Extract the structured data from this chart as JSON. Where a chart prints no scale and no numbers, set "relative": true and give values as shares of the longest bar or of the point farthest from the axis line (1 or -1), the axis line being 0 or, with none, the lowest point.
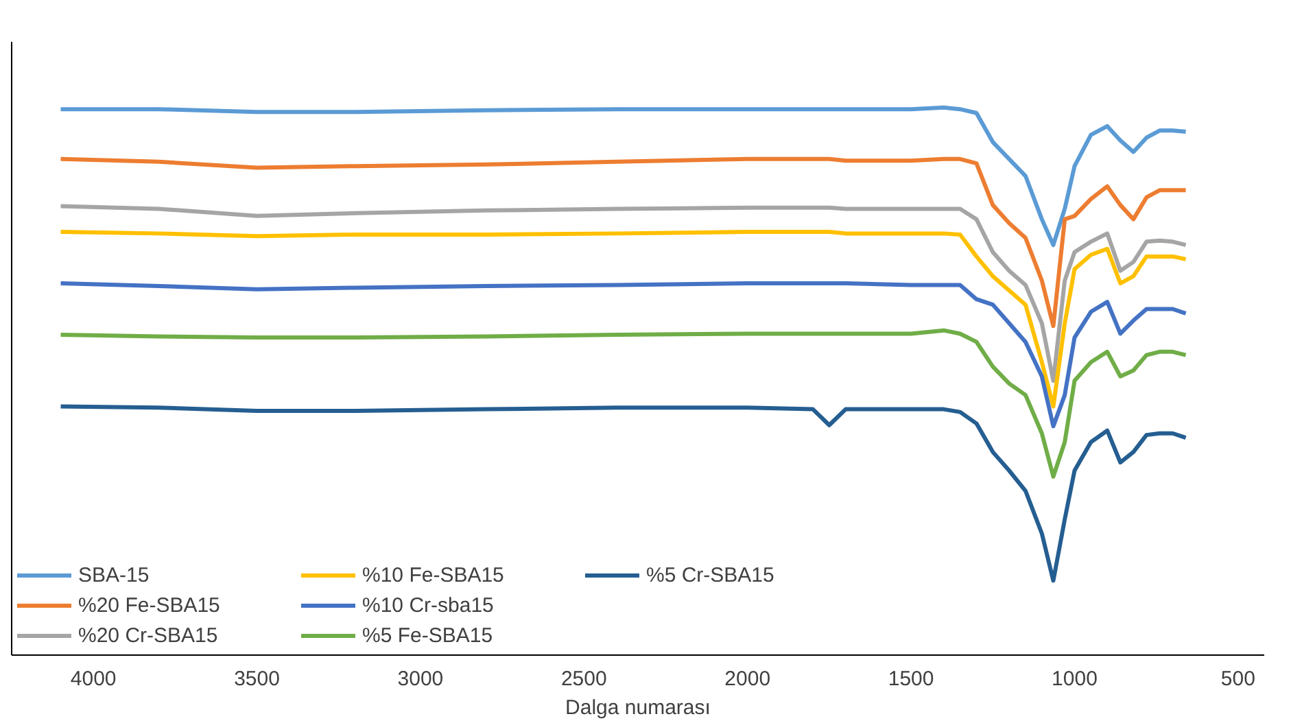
{
  "chart_data": {
    "type": "line",
    "relative": true,
    "xlabel": "Dalga numarası",
    "x": [
      4100,
      3800,
      3500,
      3200,
      2800,
      2400,
      2000,
      1800,
      1750,
      1700,
      1500,
      1400,
      1350,
      1300,
      1250,
      1200,
      1150,
      1100,
      1065,
      1030,
      1000,
      950,
      900,
      860,
      820,
      780,
      740,
      700,
      660
    ],
    "xlim": [
      4250,
      420
    ],
    "xticks": [
      4000,
      3500,
      3000,
      2500,
      2000,
      1500,
      1000,
      500
    ],
    "grid": false,
    "legend": "bottom left",
    "series": [
      {
        "name": "SBA-15",
        "color": "#5b9bd5",
        "values": [
          0.997,
          0.997,
          0.992,
          0.992,
          0.995,
          0.997,
          0.997,
          0.997,
          0.997,
          0.997,
          0.997,
          1,
          0.997,
          0.99,
          0.937,
          0.906,
          0.875,
          0.796,
          0.749,
          0.815,
          0.893,
          0.95,
          0.966,
          0.94,
          0.919,
          0.945,
          0.958,
          0.958,
          0.956
        ]
      },
      {
        "name": "%20 Fe-SBA15",
        "color": "#ed7d31",
        "values": [
          0.906,
          0.901,
          0.89,
          0.893,
          0.896,
          0.901,
          0.906,
          0.906,
          0.906,
          0.903,
          0.903,
          0.906,
          0.906,
          0.898,
          0.822,
          0.789,
          0.762,
          0.684,
          0.601,
          0.796,
          0.802,
          0.833,
          0.856,
          0.822,
          0.796,
          0.836,
          0.849,
          0.849,
          0.849
        ]
      },
      {
        "name": "%20 Cr-SBA15",
        "color": "#a5a5a5",
        "values": [
          0.82,
          0.815,
          0.802,
          0.807,
          0.812,
          0.815,
          0.817,
          0.817,
          0.817,
          0.815,
          0.815,
          0.815,
          0.815,
          0.796,
          0.736,
          0.702,
          0.676,
          0.606,
          0.501,
          0.684,
          0.736,
          0.755,
          0.77,
          0.702,
          0.718,
          0.755,
          0.757,
          0.755,
          0.749
        ]
      },
      {
        "name": "%10 Fe-SBA15",
        "color": "#ffc000",
        "values": [
          0.773,
          0.77,
          0.765,
          0.768,
          0.768,
          0.77,
          0.773,
          0.773,
          0.773,
          0.77,
          0.77,
          0.77,
          0.768,
          0.728,
          0.692,
          0.666,
          0.64,
          0.535,
          0.454,
          0.606,
          0.705,
          0.731,
          0.742,
          0.679,
          0.692,
          0.728,
          0.728,
          0.728,
          0.723
        ]
      },
      {
        "name": "%10 Cr-sba15",
        "color": "#4472c4",
        "values": [
          0.679,
          0.674,
          0.668,
          0.671,
          0.674,
          0.676,
          0.679,
          0.679,
          0.679,
          0.679,
          0.676,
          0.676,
          0.676,
          0.65,
          0.64,
          0.606,
          0.572,
          0.509,
          0.418,
          0.475,
          0.58,
          0.627,
          0.645,
          0.587,
          0.611,
          0.632,
          0.632,
          0.632,
          0.624
        ]
      },
      {
        "name": "%5 Fe-SBA15",
        "color": "#70ad47",
        "values": [
          0.585,
          0.582,
          0.58,
          0.58,
          0.582,
          0.585,
          0.587,
          0.587,
          0.587,
          0.587,
          0.587,
          0.593,
          0.587,
          0.572,
          0.527,
          0.496,
          0.475,
          0.405,
          0.326,
          0.389,
          0.501,
          0.535,
          0.554,
          0.509,
          0.52,
          0.548,
          0.554,
          0.554,
          0.548
        ]
      },
      {
        "name": "%5 Cr-SBA15",
        "color": "#255e91",
        "values": [
          0.454,
          0.452,
          0.446,
          0.446,
          0.449,
          0.452,
          0.452,
          0.449,
          0.42,
          0.449,
          0.449,
          0.449,
          0.444,
          0.423,
          0.371,
          0.337,
          0.3,
          0.222,
          0.136,
          0.248,
          0.337,
          0.389,
          0.41,
          0.352,
          0.371,
          0.402,
          0.405,
          0.405,
          0.397
        ]
      }
    ]
  }
}
